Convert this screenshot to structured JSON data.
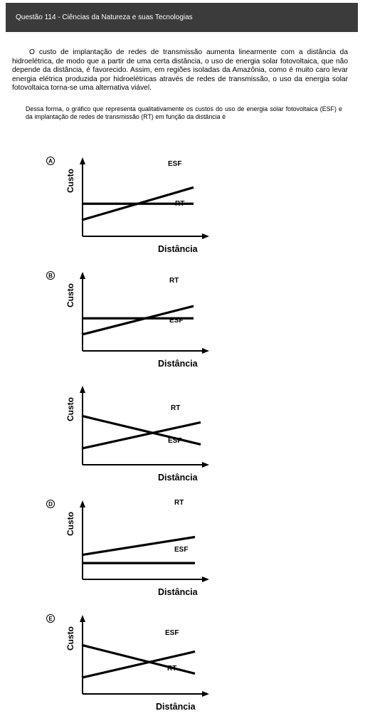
{
  "header": {
    "title": "Questão 114 - Ciências da Natureza e suas Tecnologias"
  },
  "intro": "O custo de implantação de redes de transmissão aumenta linearmente com a distância da hidroelétrica, de modo que a partir de uma certa distância, o uso de energia solar fotovoltaica, que não depende da distância, é favorecido. Assim, em regiões isoladas da Amazônia, como é muito caro levar energia elétrica produzida por hidroelétricas através de redes de transmissão, o uso da energia solar fotovoltaica torna-se uma alternativa viável.",
  "stem": "Dessa forma, o gráfico que representa qualitativamente os custos do uso de energia solar fotovoltaica (ESF) e da implantação de redes de transmissão (RT) em função da distância é",
  "chart_data": [
    {
      "type": "line",
      "option": "A",
      "ylabel": "Custo",
      "xlabel": "Distância",
      "series": [
        {
          "name": "ESF",
          "start": 0.2,
          "end": 0.6
        },
        {
          "name": "RT",
          "start": 0.4,
          "end": 0.4
        }
      ]
    },
    {
      "type": "line",
      "option": "B",
      "ylabel": "Custo",
      "xlabel": "Distância",
      "series": [
        {
          "name": "RT",
          "start": 0.2,
          "end": 0.55
        },
        {
          "name": "ESF",
          "start": 0.4,
          "end": 0.4
        }
      ]
    },
    {
      "type": "line",
      "option": "",
      "ylabel": "Custo",
      "xlabel": "Distância",
      "series": [
        {
          "name": "RT",
          "start": 0.2,
          "end": 0.52
        },
        {
          "name": "ESF",
          "start": 0.6,
          "end": 0.25
        }
      ]
    },
    {
      "type": "line",
      "option": "D",
      "ylabel": "Custo",
      "xlabel": "Distância",
      "series": [
        {
          "name": "RT",
          "start": 0.3,
          "end": 0.52
        },
        {
          "name": "ESF",
          "start": 0.2,
          "end": 0.2
        }
      ]
    },
    {
      "type": "line",
      "option": "E",
      "ylabel": "Custo",
      "xlabel": "Distância",
      "series": [
        {
          "name": "ESF",
          "start": 0.2,
          "end": 0.52
        },
        {
          "name": "RT",
          "start": 0.6,
          "end": 0.25
        }
      ]
    }
  ]
}
